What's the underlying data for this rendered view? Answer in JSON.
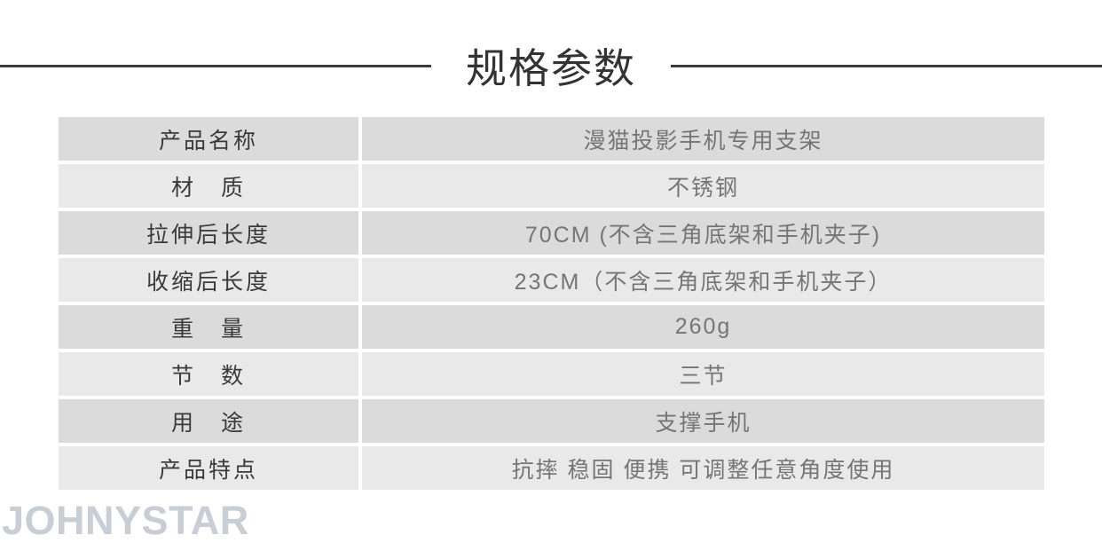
{
  "page": {
    "title": "规格参数",
    "watermark": "JOHNYSTAR"
  },
  "table": {
    "columns": [
      "label",
      "value"
    ],
    "rows": [
      {
        "label": "产品名称",
        "value": "漫猫投影手机专用支架"
      },
      {
        "label": "材　质",
        "value": "不锈钢"
      },
      {
        "label": "拉伸后长度",
        "value": "70CM (不含三角底架和手机夹子)"
      },
      {
        "label": "收缩后长度",
        "value": "23CM（不含三角底架和手机夹子）"
      },
      {
        "label": "重　量",
        "value": "260g"
      },
      {
        "label": "节　数",
        "value": "三节"
      },
      {
        "label": "用　途",
        "value": "支撑手机"
      },
      {
        "label": "产品特点",
        "value": "抗摔 稳固 便携 可调整任意角度使用"
      }
    ]
  },
  "colors": {
    "row_odd_bg": "#dbdbdb",
    "row_even_bg": "#e9e9e9",
    "label_text": "#3a3a3a",
    "value_text": "#757575",
    "title_text": "#333333",
    "divider_line": "#3a3a3a",
    "watermark_text": "#c9cdd6"
  }
}
